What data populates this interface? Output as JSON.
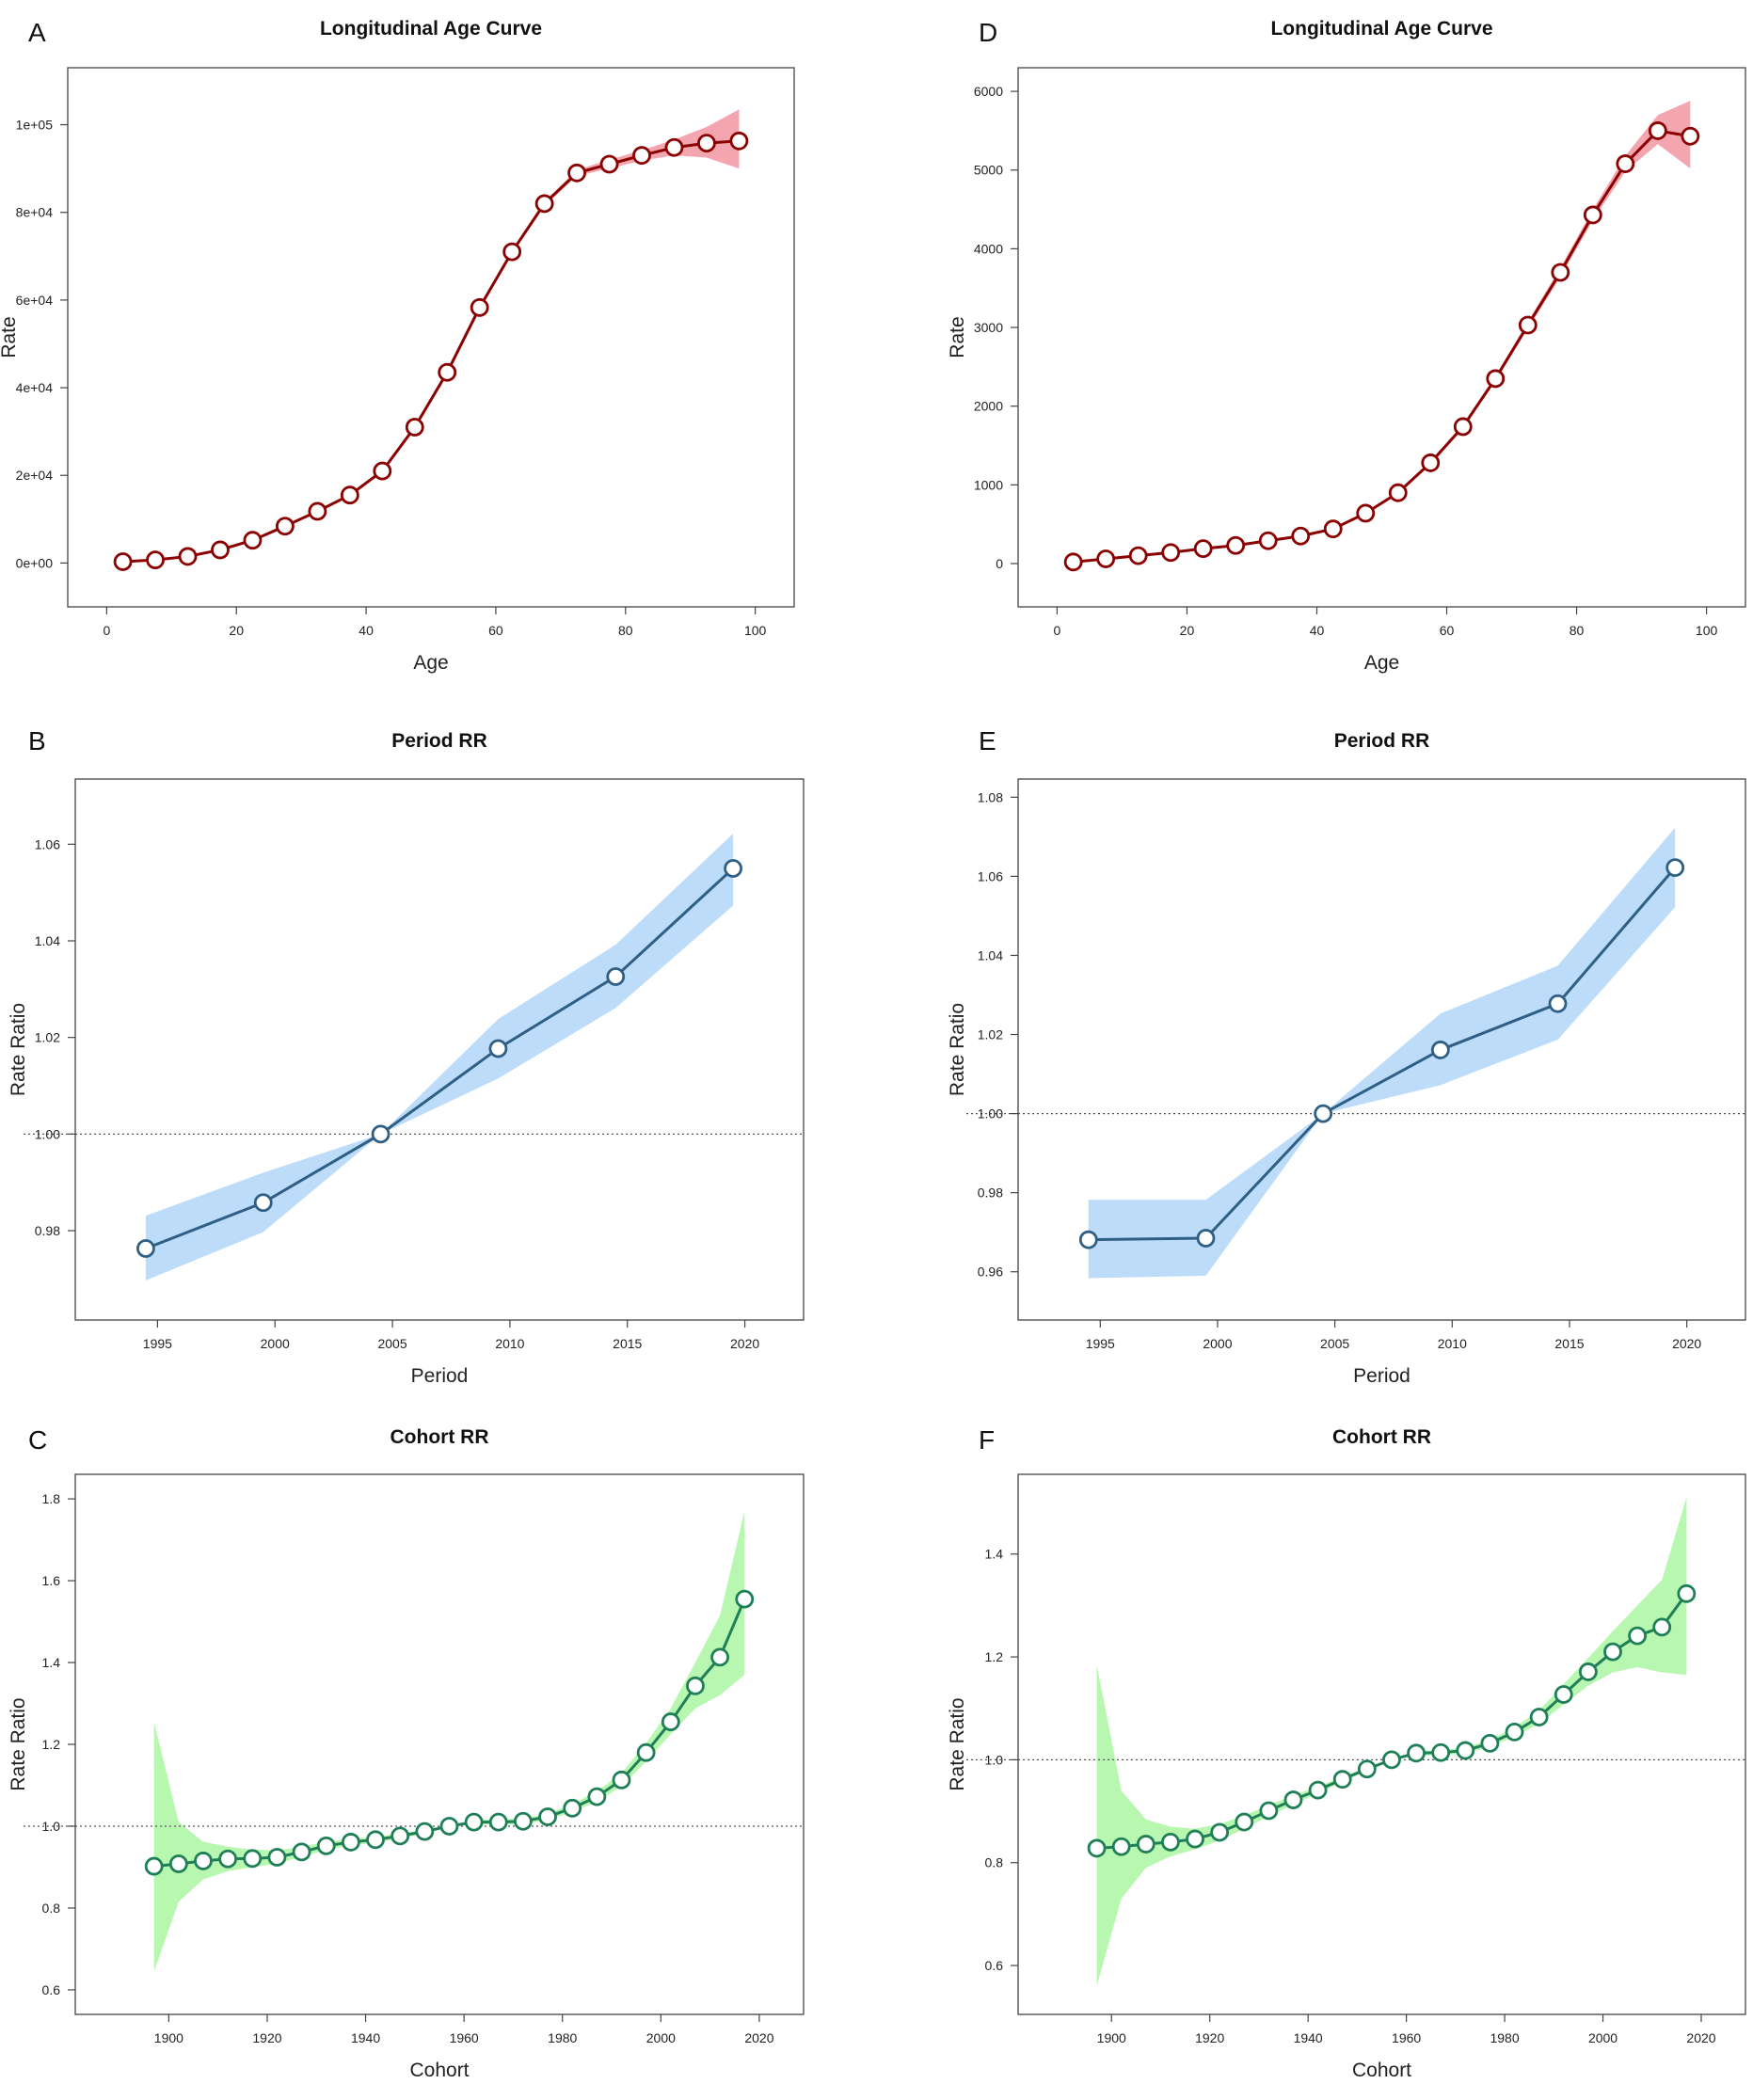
{
  "chart_data": [
    {
      "type": "line",
      "panel": "A",
      "title": "Longitudinal Age Curve",
      "xlabel": "Age",
      "ylabel": "Rate",
      "xlim": [
        -6,
        106
      ],
      "ylim": [
        -10000,
        113000
      ],
      "xticks": [
        0,
        20,
        40,
        60,
        80,
        100
      ],
      "xtick_labels": [
        "0",
        "20",
        "40",
        "60",
        "80",
        "100"
      ],
      "yticks": [
        0,
        20000,
        40000,
        60000,
        80000,
        100000
      ],
      "ytick_labels": [
        "0e+00",
        "2e+04",
        "4e+04",
        "6e+04",
        "8e+04",
        "1e+05"
      ],
      "reference_line": null,
      "line_color": "#8b0000",
      "band_color": "#f4a6b0",
      "x": [
        2.5,
        7.5,
        12.5,
        17.5,
        22.5,
        27.5,
        32.5,
        37.5,
        42.5,
        47.5,
        52.5,
        57.5,
        62.5,
        67.5,
        72.5,
        77.5,
        82.5,
        87.5,
        92.5,
        97.5
      ],
      "y": [
        300,
        700,
        1500,
        3000,
        5200,
        8400,
        11800,
        15500,
        21000,
        31000,
        43500,
        58300,
        71000,
        82000,
        89000,
        91000,
        93000,
        94800,
        95800,
        96300
      ],
      "lower": [
        150,
        550,
        1300,
        2800,
        5000,
        8200,
        11500,
        15200,
        20600,
        30600,
        43000,
        57800,
        70500,
        81500,
        88300,
        90000,
        91800,
        93000,
        92500,
        90000
      ],
      "upper": [
        450,
        850,
        1700,
        3200,
        5400,
        8600,
        12100,
        15800,
        21400,
        31400,
        44000,
        58800,
        71500,
        82500,
        89700,
        92000,
        94200,
        96600,
        99500,
        103500
      ]
    },
    {
      "type": "line",
      "panel": "D",
      "title": "Longitudinal Age Curve",
      "xlabel": "Age",
      "ylabel": "Rate",
      "xlim": [
        -6,
        106
      ],
      "ylim": [
        -550,
        6300
      ],
      "xticks": [
        0,
        20,
        40,
        60,
        80,
        100
      ],
      "xtick_labels": [
        "0",
        "20",
        "40",
        "60",
        "80",
        "100"
      ],
      "yticks": [
        0,
        1000,
        2000,
        3000,
        4000,
        5000,
        6000
      ],
      "ytick_labels": [
        "0",
        "1000",
        "2000",
        "3000",
        "4000",
        "5000",
        "6000"
      ],
      "reference_line": null,
      "line_color": "#8b0000",
      "band_color": "#f4a6b0",
      "x": [
        2.5,
        7.5,
        12.5,
        17.5,
        22.5,
        27.5,
        32.5,
        37.5,
        42.5,
        47.5,
        52.5,
        57.5,
        62.5,
        67.5,
        72.5,
        77.5,
        82.5,
        87.5,
        92.5,
        97.5
      ],
      "y": [
        20,
        60,
        100,
        140,
        190,
        230,
        290,
        350,
        440,
        640,
        900,
        1280,
        1740,
        2350,
        3030,
        3700,
        4430,
        5080,
        5500,
        5430
      ],
      "lower": [
        10,
        50,
        90,
        130,
        180,
        220,
        280,
        340,
        425,
        625,
        880,
        1255,
        1710,
        2315,
        2985,
        3640,
        4360,
        4980,
        5330,
        5020
      ],
      "upper": [
        30,
        70,
        110,
        150,
        200,
        240,
        300,
        360,
        455,
        655,
        920,
        1305,
        1770,
        2385,
        3075,
        3760,
        4500,
        5180,
        5700,
        5880
      ]
    },
    {
      "type": "line",
      "panel": "B",
      "title": "Period RR",
      "xlabel": "Period",
      "ylabel": "Rate Ratio",
      "xlim": [
        1991.5,
        2022.5
      ],
      "ylim": [
        0.9615,
        1.0735
      ],
      "xticks": [
        1995,
        2000,
        2005,
        2010,
        2015,
        2020
      ],
      "xtick_labels": [
        "1995",
        "2000",
        "2005",
        "2010",
        "2015",
        "2020"
      ],
      "yticks": [
        0.98,
        1.0,
        1.02,
        1.04,
        1.06
      ],
      "ytick_labels": [
        "0.98",
        "1.00",
        "1.02",
        "1.04",
        "1.06"
      ],
      "reference_line": 1.0,
      "line_color": "#2f5f85",
      "band_color": "#bcdcfa",
      "x": [
        1994.5,
        1999.5,
        2004.5,
        2009.5,
        2014.5,
        2019.5
      ],
      "y": [
        0.9763,
        0.9858,
        1.0,
        1.0177,
        1.0326,
        1.055
      ],
      "lower": [
        0.9697,
        0.9797,
        1.0,
        1.0115,
        1.0261,
        1.0473
      ],
      "upper": [
        0.9831,
        0.992,
        1.0,
        1.0238,
        1.0392,
        1.0622
      ]
    },
    {
      "type": "line",
      "panel": "E",
      "title": "Period RR",
      "xlabel": "Period",
      "ylabel": "Rate Ratio",
      "xlim": [
        1991.5,
        2022.5
      ],
      "ylim": [
        0.9478,
        1.0846
      ],
      "xticks": [
        1995,
        2000,
        2005,
        2010,
        2015,
        2020
      ],
      "xtick_labels": [
        "1995",
        "2000",
        "2005",
        "2010",
        "2015",
        "2020"
      ],
      "yticks": [
        0.96,
        0.98,
        1.0,
        1.02,
        1.04,
        1.06,
        1.08
      ],
      "ytick_labels": [
        "0.96",
        "0.98",
        "1.00",
        "1.02",
        "1.04",
        "1.06",
        "1.08"
      ],
      "reference_line": 1.0,
      "line_color": "#2f5f85",
      "band_color": "#bcdcfa",
      "x": [
        1994.5,
        1999.5,
        2004.5,
        2009.5,
        2014.5,
        2019.5
      ],
      "y": [
        0.9681,
        0.9685,
        1.0,
        1.0161,
        1.0278,
        1.0622
      ],
      "lower": [
        0.9584,
        0.959,
        1.0,
        1.0072,
        1.0187,
        1.0522
      ],
      "upper": [
        0.9782,
        0.9782,
        1.0,
        1.0253,
        1.0374,
        1.0723
      ]
    },
    {
      "type": "line",
      "panel": "C",
      "title": "Cohort RR",
      "xlabel": "Cohort",
      "ylabel": "Rate Ratio",
      "xlim": [
        1881,
        2029
      ],
      "ylim": [
        0.54,
        1.86
      ],
      "xticks": [
        1900,
        1920,
        1940,
        1960,
        1980,
        2000,
        2020
      ],
      "xtick_labels": [
        "1900",
        "1920",
        "1940",
        "1960",
        "1980",
        "2000",
        "2020"
      ],
      "yticks": [
        0.6,
        0.8,
        1.0,
        1.2,
        1.4,
        1.6,
        1.8
      ],
      "ytick_labels": [
        "0.6",
        "0.8",
        "1.0",
        "1.2",
        "1.4",
        "1.6",
        "1.8"
      ],
      "reference_line": 1.0,
      "line_color": "#1f7f57",
      "band_color": "#b8f7b0",
      "x": [
        1897,
        1902,
        1907,
        1912,
        1917,
        1922,
        1927,
        1932,
        1937,
        1942,
        1947,
        1952,
        1957,
        1962,
        1967,
        1972,
        1977,
        1982,
        1987,
        1992,
        1997,
        2002,
        2007,
        2012,
        2017
      ],
      "y": [
        0.902,
        0.908,
        0.915,
        0.92,
        0.921,
        0.924,
        0.937,
        0.952,
        0.961,
        0.967,
        0.976,
        0.987,
        1.0,
        1.01,
        1.01,
        1.012,
        1.023,
        1.044,
        1.072,
        1.113,
        1.18,
        1.255,
        1.343,
        1.413,
        1.555
      ],
      "lower": [
        0.645,
        0.815,
        0.87,
        0.89,
        0.9,
        0.908,
        0.925,
        0.942,
        0.953,
        0.96,
        0.97,
        0.982,
        1.0,
        1.004,
        1.004,
        1.005,
        1.015,
        1.035,
        1.06,
        1.097,
        1.158,
        1.225,
        1.288,
        1.32,
        1.37
      ],
      "upper": [
        1.255,
        1.01,
        0.962,
        0.95,
        0.943,
        0.941,
        0.95,
        0.962,
        0.969,
        0.974,
        0.982,
        0.992,
        1.0,
        1.016,
        1.017,
        1.019,
        1.031,
        1.054,
        1.085,
        1.13,
        1.203,
        1.288,
        1.4,
        1.515,
        1.77
      ]
    },
    {
      "type": "line",
      "panel": "F",
      "title": "Cohort RR",
      "xlabel": "Cohort",
      "ylabel": "Rate Ratio",
      "xlim": [
        1881,
        2029
      ],
      "ylim": [
        0.505,
        1.555
      ],
      "xticks": [
        1900,
        1920,
        1940,
        1960,
        1980,
        2000,
        2020
      ],
      "xtick_labels": [
        "1900",
        "1920",
        "1940",
        "1960",
        "1980",
        "2000",
        "2020"
      ],
      "yticks": [
        0.6,
        0.8,
        1.0,
        1.2,
        1.4
      ],
      "ytick_labels": [
        "0.6",
        "0.8",
        "1.0",
        "1.2",
        "1.4"
      ],
      "reference_line": 1.0,
      "line_color": "#1f7f57",
      "band_color": "#b8f7b0",
      "x": [
        1897,
        1902,
        1907,
        1912,
        1917,
        1922,
        1927,
        1932,
        1937,
        1942,
        1947,
        1952,
        1957,
        1962,
        1967,
        1972,
        1977,
        1982,
        1987,
        1992,
        1997,
        2002,
        2007,
        2012,
        2017
      ],
      "y": [
        0.828,
        0.831,
        0.836,
        0.84,
        0.846,
        0.859,
        0.879,
        0.901,
        0.922,
        0.941,
        0.962,
        0.982,
        1.0,
        1.013,
        1.014,
        1.018,
        1.032,
        1.054,
        1.083,
        1.127,
        1.171,
        1.21,
        1.241,
        1.258,
        1.323
      ],
      "lower": [
        0.56,
        0.73,
        0.79,
        0.812,
        0.826,
        0.843,
        0.866,
        0.89,
        0.913,
        0.934,
        0.957,
        0.978,
        1.0,
        1.009,
        1.009,
        1.012,
        1.025,
        1.045,
        1.07,
        1.107,
        1.144,
        1.17,
        1.18,
        1.17,
        1.165
      ],
      "upper": [
        1.185,
        0.94,
        0.884,
        0.87,
        0.866,
        0.875,
        0.892,
        0.912,
        0.931,
        0.948,
        0.967,
        0.986,
        1.0,
        1.017,
        1.019,
        1.024,
        1.039,
        1.063,
        1.096,
        1.147,
        1.198,
        1.25,
        1.3,
        1.35,
        1.51
      ]
    }
  ]
}
